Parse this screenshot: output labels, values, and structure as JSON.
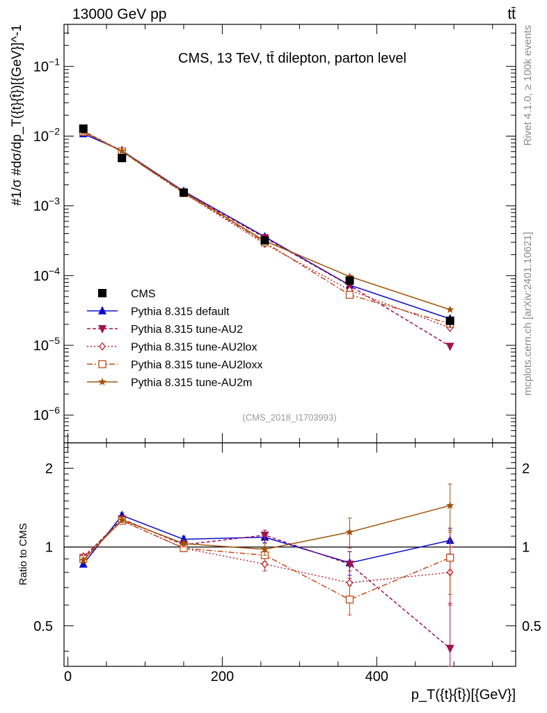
{
  "header": {
    "left": "13000 GeV pp",
    "right": "tt̄"
  },
  "side_labels": {
    "rivet": "Rivet 4.1.0, ≥ 100k events",
    "mcplots": "mcplots.cern.ch [arXiv:2401.10621]"
  },
  "chart_data": {
    "type": "line",
    "title": "CMS, 13 TeV, tt̄ dilepton, parton level",
    "analysis_tag": "(CMS_2018_I1703993)",
    "xlabel": "p_T({t}{t̄})[{GeV}]",
    "ylabel": "#1/σ #dσ/dp_T({t}{t̄})[{GeV}]^-1",
    "ratio_ylabel": "Ratio to CMS",
    "xlim": [
      -5,
      580
    ],
    "ylim": [
      4e-07,
      0.4
    ],
    "ratio_ylim": [
      0.35,
      2.5
    ],
    "yscale": "log",
    "x_ticks": [
      0,
      200,
      400
    ],
    "y_tick_labels": [
      {
        "exp": -6,
        "label": "10",
        "sup": "−6"
      },
      {
        "exp": -5,
        "label": "10",
        "sup": "−5"
      },
      {
        "exp": -4,
        "label": "10",
        "sup": "−4"
      },
      {
        "exp": -3,
        "label": "10",
        "sup": "−3"
      },
      {
        "exp": -2,
        "label": "10",
        "sup": "−2"
      },
      {
        "exp": -1,
        "label": "10",
        "sup": "−1"
      }
    ],
    "ratio_ticks": [
      {
        "value": 0.5,
        "label": "0.5"
      },
      {
        "value": 1,
        "label": "1"
      },
      {
        "value": 2,
        "label": "2"
      }
    ],
    "x": [
      20,
      70,
      150,
      255,
      365,
      495
    ],
    "x_edges": [
      0,
      40,
      100,
      200,
      310,
      420,
      570
    ],
    "data": {
      "name": "CMS",
      "values": [
        0.0128,
        0.00485,
        0.00155,
        0.00032,
        8.5e-05,
        2.25e-05
      ],
      "errors": [
        0.0006,
        0.0003,
        8e-05,
        3e-05,
        1.2e-05,
        4.5e-06
      ]
    },
    "series": [
      {
        "name": "Pythia 8.315 default",
        "color": "#0a0acc",
        "marker": "triangle-up",
        "dash": "",
        "values": [
          0.0108,
          0.0062,
          0.00162,
          0.00036,
          7.3e-05,
          2.4e-05
        ]
      },
      {
        "name": "Pythia 8.315 tune-AU2",
        "color": "#a0124a",
        "marker": "triangle-down",
        "dash": "5,3",
        "values": [
          0.0118,
          0.0061,
          0.00157,
          0.00035,
          7.2e-05,
          9.7e-06
        ]
      },
      {
        "name": "Pythia 8.315 tune-AU2lox",
        "color": "#b81d2e",
        "marker": "diamond",
        "dash": "2,3",
        "values": [
          0.0118,
          0.006,
          0.00152,
          0.000285,
          6.2e-05,
          1.78e-05
        ]
      },
      {
        "name": "Pythia 8.315 tune-AU2loxx",
        "color": "#c44a14",
        "marker": "square-open",
        "dash": "8,3,2,3",
        "values": [
          0.0115,
          0.006,
          0.00153,
          0.0003,
          5.3e-05,
          2.04e-05
        ]
      },
      {
        "name": "Pythia 8.315 tune-AU2m",
        "color": "#a0520a",
        "marker": "star",
        "dash": "",
        "values": [
          0.0115,
          0.0061,
          0.00158,
          0.000315,
          9.7e-05,
          3.25e-05
        ]
      }
    ],
    "ratios": [
      {
        "values": [
          0.86,
          1.32,
          1.07,
          1.09,
          0.87,
          1.06
        ],
        "errors": [
          0.02,
          0.03,
          0.03,
          0.05,
          0.09,
          0.12
        ]
      },
      {
        "values": [
          0.91,
          1.28,
          1.02,
          1.11,
          0.86,
          0.41
        ],
        "errors": [
          0.02,
          0.03,
          0.03,
          0.05,
          0.1,
          0.2
        ]
      },
      {
        "values": [
          0.92,
          1.26,
          0.99,
          0.86,
          0.73,
          0.8
        ],
        "errors": [
          0.02,
          0.03,
          0.03,
          0.05,
          0.08,
          0.2
        ]
      },
      {
        "values": [
          0.9,
          1.26,
          0.99,
          0.93,
          0.63,
          0.91
        ],
        "errors": [
          0.02,
          0.03,
          0.03,
          0.05,
          0.08,
          0.25
        ]
      },
      {
        "values": [
          0.89,
          1.27,
          1.03,
          0.98,
          1.14,
          1.44
        ],
        "errors": [
          0.02,
          0.03,
          0.03,
          0.05,
          0.15,
          0.3
        ]
      }
    ]
  }
}
